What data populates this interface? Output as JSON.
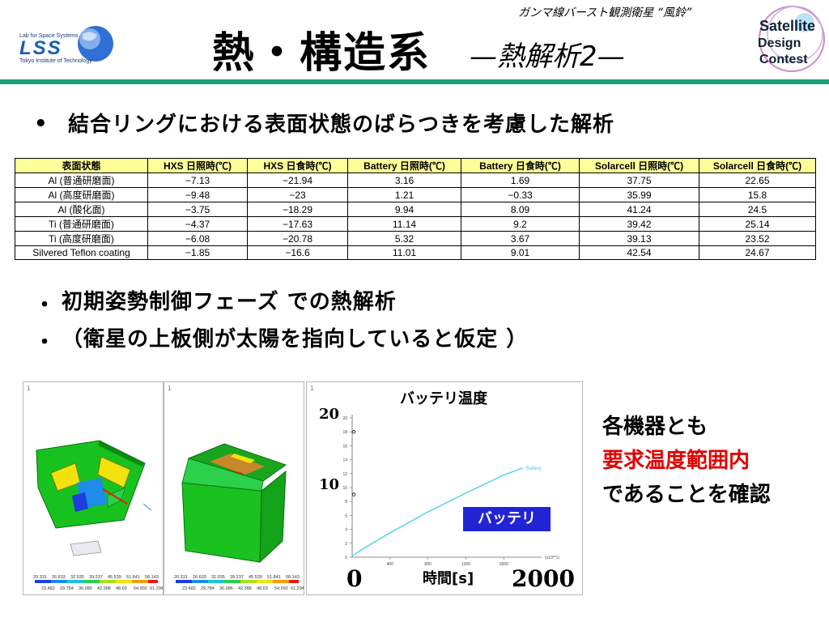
{
  "header": {
    "mission": "ガンマ線バースト観測衛星 “風鈴”",
    "title": "熱・構造系",
    "subtitle": "—熱解析2—",
    "lss_logo": {
      "top": "Lab for Space Systems",
      "name": "LSS",
      "bottom": "Tokyo Institute of Technology"
    },
    "sdc_logo": {
      "line1": "Satellite",
      "line2": "Design",
      "line3": "Contest"
    }
  },
  "bullets": {
    "b1_mark": "•",
    "b1": "結合リングにおける表面状態のばらつきを考慮した解析",
    "b2_mark": "・",
    "b2": "初期姿勢制御フェーズ での熱解析",
    "b3_mark": "・",
    "b3": "（衛星の上板側が太陽を指向していると仮定 ）"
  },
  "table": {
    "headers": [
      "表面状態",
      "HXS 日照時(℃)",
      "HXS 日食時(℃)",
      "Battery 日照時(℃)",
      "Battery 日食時(℃)",
      "Solarcell 日照時(℃)",
      "Solarcell 日食時(℃)"
    ],
    "rows": [
      [
        "Al (普通研磨面)",
        "−7.13",
        "−21.94",
        "3.16",
        "1.69",
        "37.75",
        "22.65"
      ],
      [
        "Al (高度研磨面)",
        "−9.48",
        "−23",
        "1.21",
        "−0.33",
        "35.99",
        "15.8"
      ],
      [
        "Al (酸化面)",
        "−3.75",
        "−18.29",
        "9.94",
        "8.09",
        "41.24",
        "24.5"
      ],
      [
        "Ti (普通研磨面)",
        "−4.37",
        "−17.63",
        "11.14",
        "9.2",
        "39.42",
        "25.14"
      ],
      [
        "Ti (高度研磨面)",
        "−6.08",
        "−20.78",
        "5.32",
        "3.67",
        "39.13",
        "23.52"
      ],
      [
        "Silvered Teflon coating",
        "−1.85",
        "−16.6",
        "11.01",
        "9.01",
        "42.54",
        "24.67"
      ]
    ]
  },
  "simulation": {
    "colorbar_colors": [
      "#1d3dde",
      "#1e8ce8",
      "#19c6d6",
      "#2bd14a",
      "#a7e01b",
      "#f2e30e",
      "#f59a0a",
      "#e51c12"
    ],
    "scale_1": {
      "top": [
        "20.331",
        "26.633",
        "32.935",
        "39.237",
        "45.539",
        "51.841",
        "58.143"
      ],
      "bottom": [
        "23.482",
        "29.784",
        "36.086",
        "42.388",
        "48.69",
        "54.992",
        "61.294"
      ]
    },
    "scale_2": {
      "top": [
        "20.331",
        "26.633",
        "32.935",
        "39.237",
        "45.539",
        "51.841",
        "58.143"
      ],
      "bottom": [
        "23.482",
        "29.784",
        "36.086",
        "42.388",
        "48.69",
        "54.992",
        "61.294"
      ]
    },
    "panel_marker": "1"
  },
  "chart": {
    "title": "バッテリ温度",
    "ylabel_top": "20",
    "ylabel_mid": "10",
    "xlabel_start": "0",
    "xlabel_end": "2000",
    "xlabel": "時間[s]",
    "callout": "バッテリ",
    "line_color": "#4fd0e8"
  },
  "chart_data": {
    "type": "line",
    "title": "バッテリ温度",
    "xlabel": "時間[s]",
    "ylabel": "",
    "xlim": [
      0,
      2000
    ],
    "ylim": [
      0,
      20
    ],
    "y_ticks": [
      "0",
      "2",
      "4",
      "6",
      "8",
      "10",
      "12",
      "14",
      "16",
      "18",
      "20"
    ],
    "x_ticks": [
      "400",
      "800",
      "1200",
      "1600"
    ],
    "x_scale_note": "(x10**1)",
    "series": [
      {
        "name": "Battery",
        "x": [
          0,
          150,
          400,
          800,
          1200,
          1600,
          1800
        ],
        "y": [
          0.2,
          1.5,
          3.5,
          6.5,
          9.2,
          11.8,
          12.8
        ]
      }
    ]
  },
  "notes": {
    "line1": "各機器とも",
    "line2": "要求温度範囲内",
    "line3": "であることを確認"
  }
}
